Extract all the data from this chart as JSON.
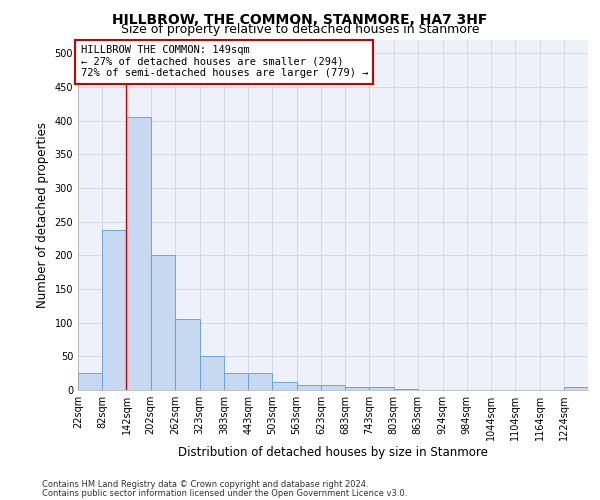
{
  "title": "HILLBROW, THE COMMON, STANMORE, HA7 3HF",
  "subtitle": "Size of property relative to detached houses in Stanmore",
  "xlabel": "Distribution of detached houses by size in Stanmore",
  "ylabel": "Number of detached properties",
  "bar_values": [
    25,
    237,
    405,
    200,
    105,
    50,
    25,
    25,
    12,
    8,
    8,
    5,
    5,
    1,
    0,
    0,
    0,
    0,
    0,
    0,
    5
  ],
  "bin_edges": [
    22,
    82,
    142,
    202,
    262,
    323,
    383,
    443,
    503,
    563,
    623,
    683,
    743,
    803,
    863,
    924,
    984,
    1044,
    1104,
    1164,
    1224,
    1284
  ],
  "bar_color": "#c6d9f0",
  "bar_edge_color": "#5a9fd4",
  "red_line_x": 142,
  "annotation_text": "HILLBROW THE COMMON: 149sqm\n← 27% of detached houses are smaller (294)\n72% of semi-detached houses are larger (779) →",
  "annotation_box_color": "#ffffff",
  "annotation_box_edge_color": "#cc0000",
  "ylim": [
    0,
    520
  ],
  "yticks": [
    0,
    50,
    100,
    150,
    200,
    250,
    300,
    350,
    400,
    450,
    500
  ],
  "background_color": "#ffffff",
  "grid_color": "#c8d0e0",
  "footer_line1": "Contains HM Land Registry data © Crown copyright and database right 2024.",
  "footer_line2": "Contains public sector information licensed under the Open Government Licence v3.0.",
  "title_fontsize": 10,
  "subtitle_fontsize": 9,
  "label_fontsize": 8.5,
  "tick_fontsize": 7,
  "annotation_fontsize": 7.5,
  "footer_fontsize": 6
}
